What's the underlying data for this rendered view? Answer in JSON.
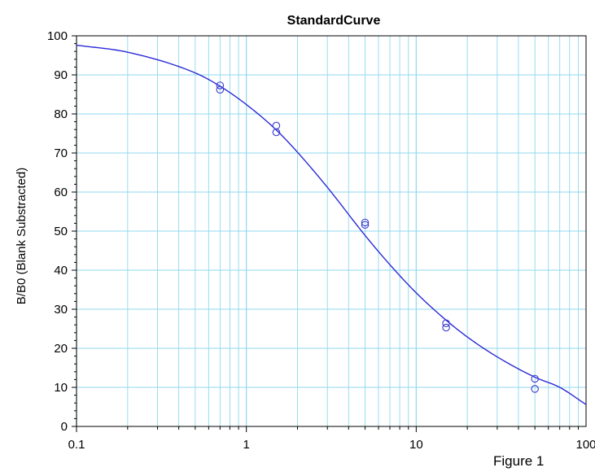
{
  "chart_data": {
    "type": "scatter",
    "title": "StandardCurve",
    "xlabel": "",
    "ylabel": "B/B0 (Blank Substracted)",
    "x_scale": "log",
    "xlim": [
      0.1,
      100
    ],
    "ylim": [
      0,
      100
    ],
    "x_tick_labels": [
      "0.1",
      "1",
      "10",
      "100"
    ],
    "y_tick_labels": [
      "0",
      "10",
      "20",
      "30",
      "40",
      "50",
      "60",
      "70",
      "80",
      "90",
      "100"
    ],
    "grid": true,
    "colors": {
      "curve": "#2a2ad6",
      "points": "#3a3acc",
      "grid": "#8fd8ef"
    },
    "points": [
      {
        "x": 0.7,
        "y": 87.3
      },
      {
        "x": 0.7,
        "y": 86.2
      },
      {
        "x": 1.5,
        "y": 77.0
      },
      {
        "x": 1.5,
        "y": 75.3
      },
      {
        "x": 5,
        "y": 52.2
      },
      {
        "x": 5,
        "y": 51.6
      },
      {
        "x": 15,
        "y": 26.4
      },
      {
        "x": 15,
        "y": 25.3
      },
      {
        "x": 50,
        "y": 12.2
      },
      {
        "x": 50,
        "y": 9.6
      }
    ],
    "fit_curve": {
      "x": [
        0.1,
        0.2,
        0.5,
        0.7,
        1,
        1.5,
        2,
        3,
        5,
        7,
        10,
        15,
        20,
        30,
        50,
        70,
        100
      ],
      "y": [
        97.6,
        95.8,
        90.5,
        87.1,
        82.4,
        75.9,
        70.2,
        61.2,
        48.9,
        41.4,
        34.2,
        27.2,
        22.9,
        17.8,
        12.6,
        10.0,
        5.6
      ]
    }
  },
  "figure_caption": "Figure 1"
}
